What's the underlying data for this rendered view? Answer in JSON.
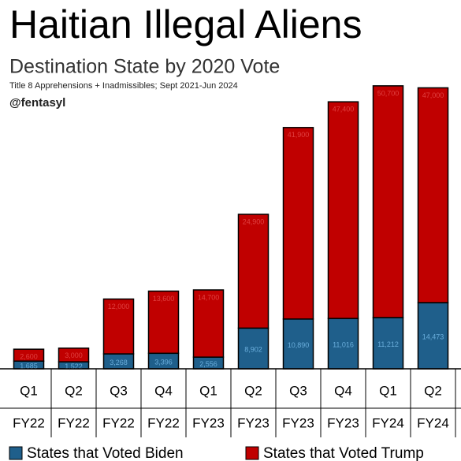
{
  "chart_data": {
    "type": "stacked-bar",
    "title": "Haitian Illegal Aliens",
    "subtitle": "Destination State by 2020 Vote",
    "note": "Title 8 Apprehensions + Inadmissibles; Sept 2021-Jun 2024",
    "credit": "@fentasyl",
    "quarters": [
      "Q1",
      "Q2",
      "Q3",
      "Q4",
      "Q1",
      "Q2",
      "Q3",
      "Q4",
      "Q1",
      "Q2"
    ],
    "fiscal_years": [
      "FY22",
      "FY22",
      "FY22",
      "FY22",
      "FY23",
      "FY23",
      "FY23",
      "FY23",
      "FY24",
      "FY24"
    ],
    "ylim": [
      0,
      80000
    ],
    "series": [
      {
        "name": "States that Voted Biden",
        "color": "#1f5f8b",
        "values": [
          1685,
          1522,
          3268,
          3396,
          2556,
          8902,
          10890,
          11016,
          11212,
          14473
        ],
        "value_labels": [
          "1,685",
          "1,522",
          "3,268",
          "3,396",
          "2,556",
          "8,902",
          "10,890",
          "11,016",
          "11,212",
          "14,473"
        ]
      },
      {
        "name": "States that Voted Trump",
        "color": "#c00000",
        "values": [
          2600,
          3000,
          12000,
          13600,
          14700,
          24900,
          41900,
          47400,
          50700,
          47000
        ],
        "value_labels": [
          "2,600",
          "3,000",
          "12,000",
          "13,600",
          "14,700",
          "24,900",
          "41,900",
          "47,400",
          "50,700",
          "47,000"
        ]
      }
    ]
  }
}
